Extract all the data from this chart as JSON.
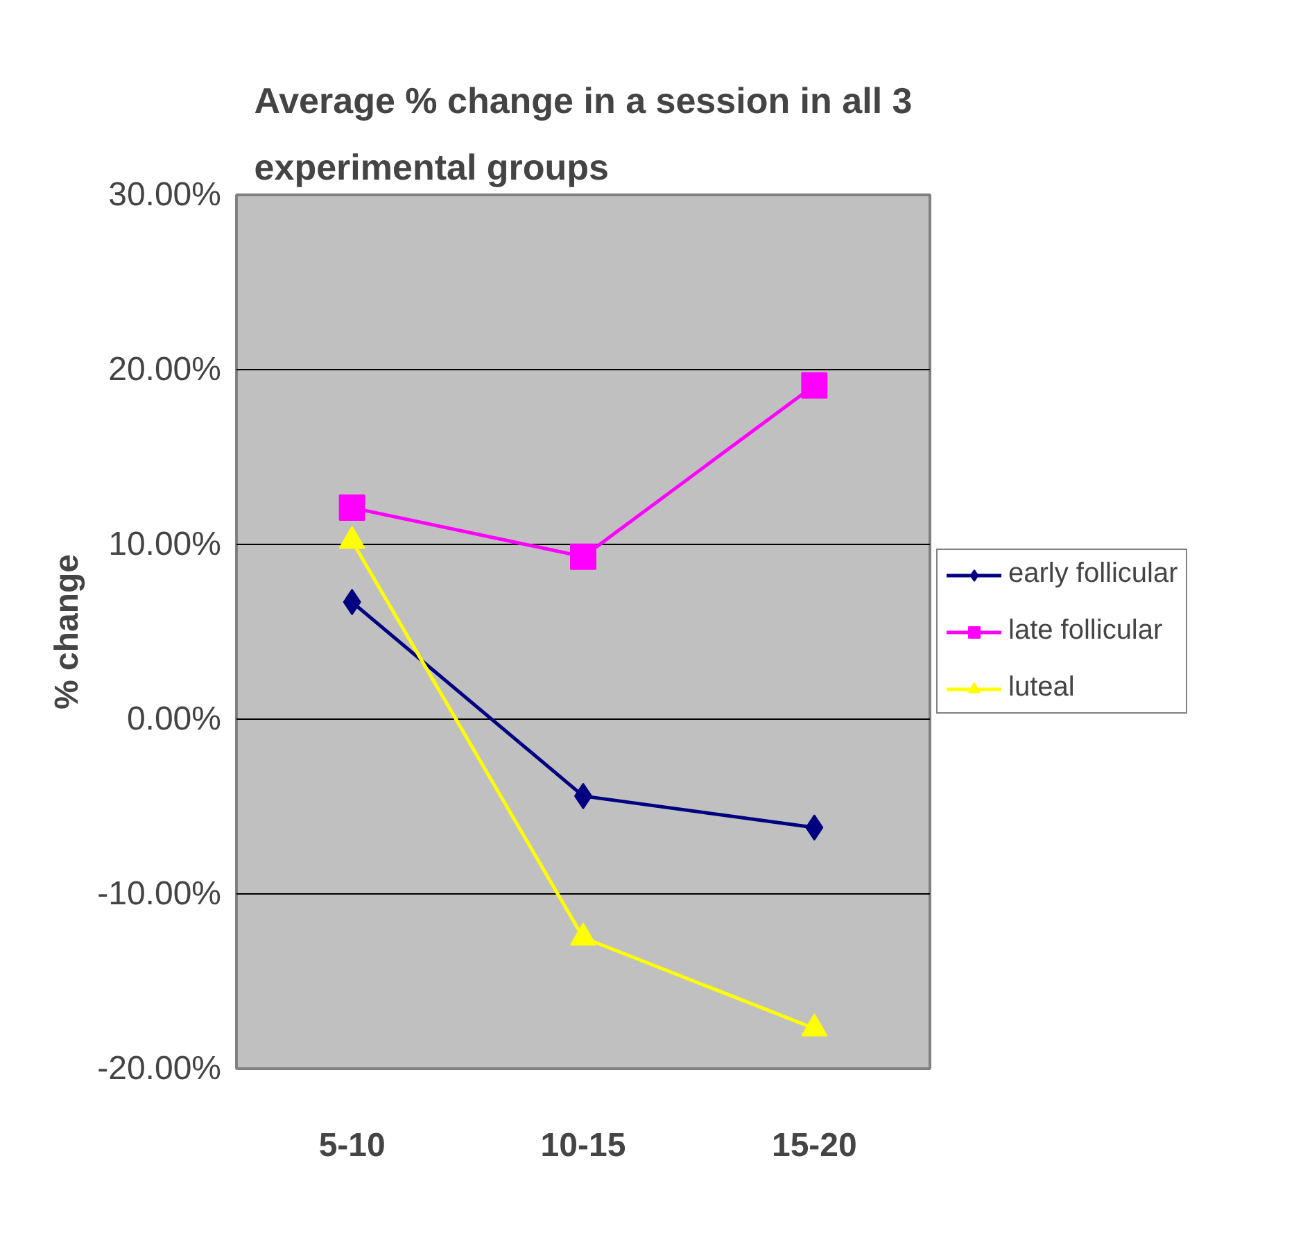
{
  "chart_data": {
    "type": "line",
    "title": "Average % change in a session in all 3 experimental groups",
    "ylabel": "% change",
    "categories": [
      "5-10",
      "10-15",
      "15-20"
    ],
    "series": [
      {
        "name": "early follicular",
        "color": "#000080",
        "marker": "diamond",
        "values": [
          6.7,
          -4.4,
          -6.2
        ]
      },
      {
        "name": "late follicular",
        "color": "#ff00ff",
        "marker": "square",
        "values": [
          12.1,
          9.3,
          19.1
        ]
      },
      {
        "name": "luteal",
        "color": "#ffff00",
        "marker": "triangle",
        "values": [
          10.2,
          -12.5,
          -17.7
        ]
      }
    ],
    "ylim": [
      -20,
      30
    ],
    "yticks": [
      {
        "value": -20,
        "label": "-20.00%"
      },
      {
        "value": -10,
        "label": "-10.00%"
      },
      {
        "value": 0,
        "label": "0.00%"
      },
      {
        "value": 10,
        "label": "10.00%"
      },
      {
        "value": 20,
        "label": "20.00%"
      },
      {
        "value": 30,
        "label": "30.00%"
      }
    ],
    "grid": "y",
    "legend": "right",
    "line_style": "solid"
  }
}
